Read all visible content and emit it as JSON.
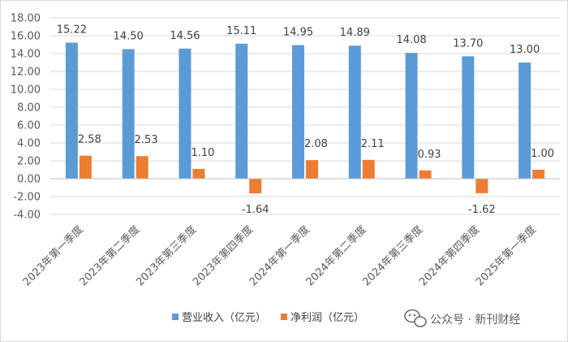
{
  "chart_data": {
    "type": "bar",
    "categories": [
      "2023年第一季度",
      "2023年第二季度",
      "2023年第三季度",
      "2023年第四季度",
      "2024年第一季度",
      "2024年第二季度",
      "2024年第三季度",
      "2024年第四季度",
      "2025年第一季度"
    ],
    "series": [
      {
        "name": "营业收入（亿元）",
        "color": "#5B9BD5",
        "values": [
          15.22,
          14.5,
          14.56,
          15.11,
          14.95,
          14.89,
          14.08,
          13.7,
          13.0
        ]
      },
      {
        "name": "净利润（亿元）",
        "color": "#ED7D31",
        "values": [
          2.58,
          2.53,
          1.1,
          -1.64,
          2.08,
          2.11,
          0.93,
          -1.62,
          1.0
        ]
      }
    ],
    "ylim": [
      -4,
      18
    ],
    "ytick_step": 2,
    "yticks": [
      "18.00",
      "16.00",
      "14.00",
      "12.00",
      "10.00",
      "8.00",
      "6.00",
      "4.00",
      "2.00",
      "0.00",
      "-2.00",
      "-4.00"
    ],
    "grid": true,
    "legend_position": "bottom"
  },
  "legend": {
    "items": [
      {
        "label": "营业收入（亿元）",
        "color": "#5B9BD5"
      },
      {
        "label": "净利润（亿元）",
        "color": "#ED7D31"
      }
    ]
  },
  "watermark": {
    "text": "公众号 · 新刊财经"
  }
}
